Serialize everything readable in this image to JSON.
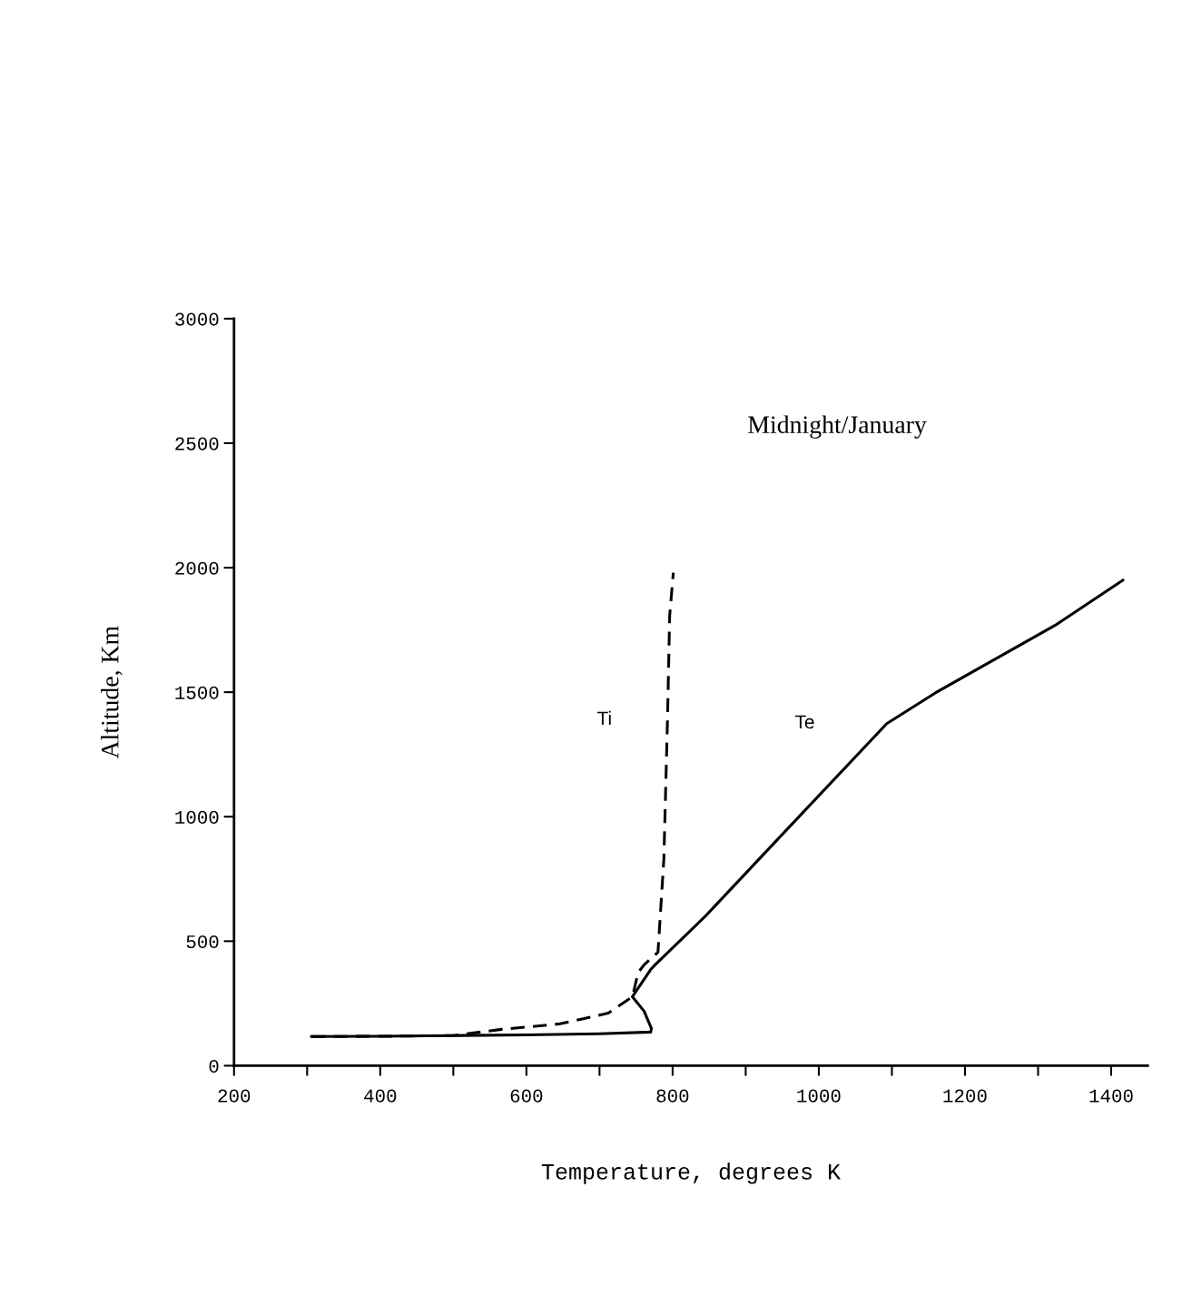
{
  "chart_data": {
    "type": "line",
    "title": "Midnight/January",
    "xlabel": "Temperature, degrees K",
    "ylabel": "Altitude, Km",
    "xlim": [
      200,
      1450
    ],
    "ylim": [
      0,
      3000
    ],
    "xticks": [
      200,
      {
        "value": 300,
        "label": null
      },
      400,
      {
        "value": 500,
        "label": null
      },
      600,
      {
        "value": 700,
        "label": null
      },
      800,
      {
        "value": 900,
        "label": null
      },
      1000,
      {
        "value": 1100,
        "label": null
      },
      1200,
      {
        "value": 1300,
        "label": null
      },
      1400
    ],
    "yticks": [
      0,
      500,
      1000,
      1500,
      2000,
      2500,
      3000
    ],
    "grid": false,
    "legend": false,
    "marker": "none",
    "series": [
      {
        "name": "Ti",
        "color": "#000000",
        "line_style": "dashed",
        "x": [
          306,
          400,
          500,
          566,
          646,
          712,
          745,
          753,
          761,
          780,
          788,
          793,
          796,
          801
        ],
        "values": [
          117,
          118,
          121,
          146,
          168,
          211,
          277,
          375,
          405,
          456,
          828,
          1389,
          1808,
          1980
        ]
      },
      {
        "name": "Te",
        "color": "#000000",
        "line_style": "solid",
        "x": [
          306,
          400,
          500,
          600,
          700,
          770,
          771,
          761,
          745,
          770,
          776,
          845,
          954,
          1093,
          1160,
          1323,
          1416
        ],
        "values": [
          117,
          118,
          121,
          124,
          128,
          135,
          150,
          219,
          277,
          386,
          405,
          601,
          941,
          1374,
          1498,
          1768,
          1950
        ]
      }
    ]
  }
}
